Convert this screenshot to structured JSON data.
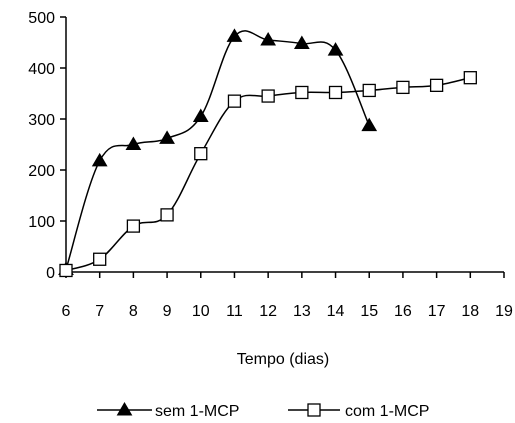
{
  "chart_data": {
    "type": "line",
    "title": "",
    "xlabel": "Tempo (dias)",
    "ylabel": "",
    "xlim": [
      6,
      19
    ],
    "ylim": [
      0,
      500
    ],
    "x_ticks": [
      "6",
      "7",
      "8",
      "9",
      "10",
      "11",
      "12",
      "13",
      "14",
      "15",
      "16",
      "17",
      "18",
      "19"
    ],
    "y_ticks": [
      "0",
      "100",
      "200",
      "300",
      "400",
      "500"
    ],
    "grid": false,
    "legend_position": "bottom",
    "series": [
      {
        "name": "sem 1-MCP",
        "marker": "filled-triangle",
        "color": "#000000",
        "x": [
          6,
          7,
          8,
          9,
          10,
          11,
          12,
          13,
          14,
          15
        ],
        "y": [
          5,
          218,
          250,
          262,
          305,
          462,
          455,
          448,
          435,
          287
        ]
      },
      {
        "name": "com 1-MCP",
        "marker": "open-square",
        "color": "#000000",
        "x": [
          6,
          7,
          8,
          9,
          10,
          11,
          12,
          13,
          14,
          15,
          16,
          17,
          18
        ],
        "y": [
          3,
          25,
          90,
          112,
          232,
          335,
          345,
          352,
          352,
          356,
          362,
          366,
          381
        ]
      }
    ]
  }
}
